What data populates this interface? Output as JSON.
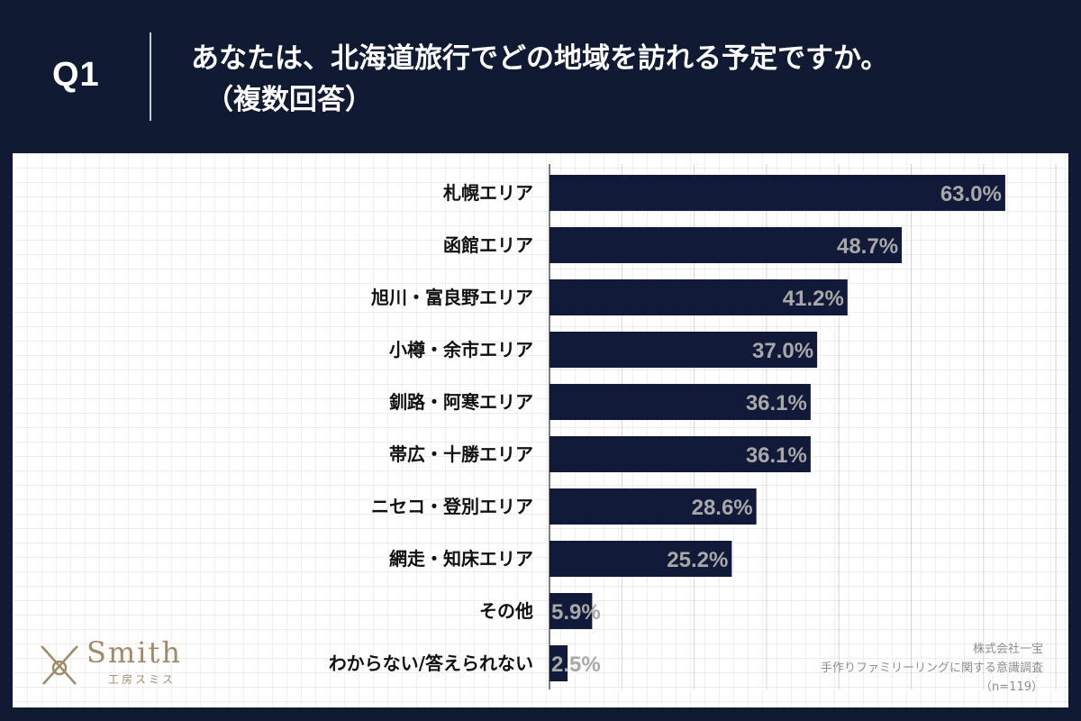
{
  "header": {
    "q_label": "Q1",
    "title_line1": "あなたは、北海道旅行でどの地域を訪れる予定ですか。",
    "title_line2": "（複数回答）"
  },
  "chart_data": {
    "type": "bar",
    "orientation": "horizontal",
    "title": "あなたは、北海道旅行でどの地域を訪れる予定ですか。（複数回答）",
    "categories": [
      "札幌エリア",
      "函館エリア",
      "旭川・富良野エリア",
      "小樽・余市エリア",
      "釧路・阿寒エリア",
      "帯広・十勝エリア",
      "ニセコ・登別エリア",
      "網走・知床エリア",
      "その他",
      "わからない/答えられない"
    ],
    "values": [
      63.0,
      48.7,
      41.2,
      37.0,
      36.1,
      36.1,
      28.6,
      25.2,
      5.9,
      2.5
    ],
    "value_labels": [
      "63.0%",
      "48.7%",
      "41.2%",
      "37.0%",
      "36.1%",
      "36.1%",
      "28.6%",
      "25.2%",
      "5.9%",
      "2.5%"
    ],
    "unit": "%",
    "xlim": [
      0,
      70
    ],
    "grid": true,
    "bar_color": "#121a3a"
  },
  "logo": {
    "name": "Smith",
    "sub": "工房スミス"
  },
  "source": {
    "line1": "株式会社一宝",
    "line2": "手作りファミリーリングに関する意識調査",
    "line3": "（n=119）"
  },
  "colors": {
    "background": "#111a33",
    "bar": "#121a3a",
    "value_label": "#a8a8a8",
    "logo": "#a08a6a"
  }
}
